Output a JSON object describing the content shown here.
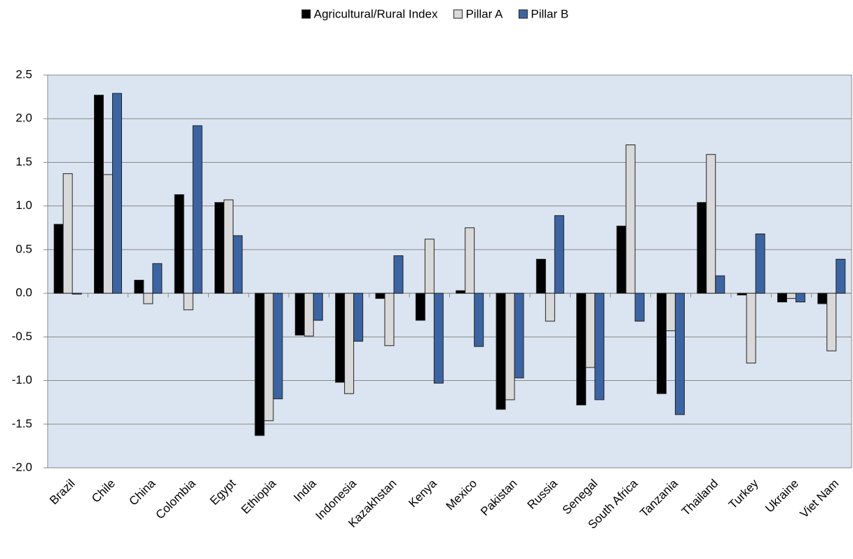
{
  "chart_data": {
    "type": "bar",
    "categories": [
      "Brazil",
      "Chile",
      "China",
      "Colombia",
      "Egypt",
      "Ethiopia",
      "India",
      "Indonesia",
      "Kazakhstan",
      "Kenya",
      "Mexico",
      "Pakistan",
      "Russia",
      "Senegal",
      "South Africa",
      "Tanzania",
      "Thailand",
      "Turkey",
      "Ukraine",
      "Viet Nam"
    ],
    "series": [
      {
        "name": "Agricultural/Rural Index",
        "color": "#000000",
        "values": [
          0.79,
          2.27,
          0.15,
          1.13,
          1.04,
          -1.63,
          -0.48,
          -1.02,
          -0.06,
          -0.31,
          0.03,
          -1.33,
          0.39,
          -1.28,
          0.77,
          -1.15,
          1.04,
          -0.02,
          -0.1,
          -0.12
        ]
      },
      {
        "name": "Pillar A",
        "color": "#d9d9d9",
        "values": [
          1.37,
          1.36,
          -0.12,
          -0.19,
          1.07,
          -1.46,
          -0.49,
          -1.15,
          -0.6,
          0.62,
          0.75,
          -1.22,
          -0.32,
          -0.85,
          1.7,
          -0.43,
          1.59,
          -0.8,
          -0.06,
          -0.66
        ]
      },
      {
        "name": "Pillar B",
        "color": "#3c64a2",
        "values": [
          -0.01,
          2.29,
          0.34,
          1.92,
          0.66,
          -1.21,
          -0.31,
          -0.55,
          0.43,
          -1.03,
          -0.61,
          -0.97,
          0.89,
          -1.22,
          -0.32,
          -1.39,
          0.2,
          0.68,
          -0.1,
          0.39
        ]
      }
    ],
    "ylim": [
      -2.0,
      2.5
    ],
    "yticks": [
      {
        "value": 2.5,
        "label": "2.5"
      },
      {
        "value": 2,
        "label": "2.0"
      },
      {
        "value": 1.5,
        "label": "1.5"
      },
      {
        "value": 1,
        "label": "1.0"
      },
      {
        "value": 0.5,
        "label": "0.5"
      },
      {
        "value": 0,
        "label": "0.0"
      },
      {
        "value": -0.5,
        "label": "-0.5"
      },
      {
        "value": -1,
        "label": "-1.0"
      },
      {
        "value": -1.5,
        "label": "-1.5"
      },
      {
        "value": -2,
        "label": "-2.0"
      }
    ],
    "grid": true,
    "legend": "top",
    "plot_background": "#dbe5f1"
  }
}
